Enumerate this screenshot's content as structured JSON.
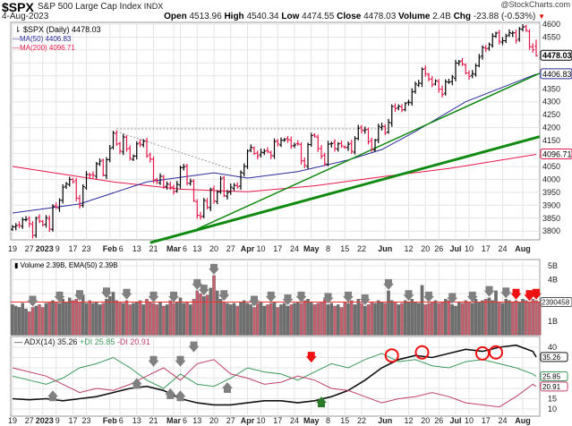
{
  "header": {
    "symbol": "$SPX",
    "name": "S&P 500 Large Cap Index",
    "exchange": "INDX",
    "date": "4-Aug-2023",
    "credit": "@StockCharts.com",
    "open_label": "Open",
    "open": "4513.96",
    "high_label": "High",
    "high": "4540.34",
    "low_label": "Low",
    "low": "4474.55",
    "close_label": "Close",
    "close": "4478.03",
    "volume_label": "Volume",
    "volume": "2.4B",
    "chg_label": "Chg",
    "chg": "-23.88 (-0.53%)"
  },
  "legend": {
    "price": "$SPX (Daily) 4478.03",
    "ma50": "MA(50) 4406.83",
    "ma200": "MA(200) 4096.71",
    "volume": "Volume 2.39B, EMA(50) 2.39B",
    "adx": "ADX(14) 35.26",
    "pdi": "+DI 25.85",
    "mdi": "-DI 20.91"
  },
  "colors": {
    "up": "#000000",
    "down": "#e8174b",
    "ma50": "#2a2a9a",
    "ma200": "#e8174b",
    "trend": "#108a10",
    "vol_up": "#6e6e6e",
    "vol_down": "#c4606e",
    "adx": "#111111",
    "pdi": "#3a9a5a",
    "mdi": "#c0406a",
    "annot": "#808080",
    "alert": "#ee1111"
  },
  "chart_data": [
    {
      "type": "ohlc",
      "title": "$SPX (Daily)",
      "ylim": [
        3775,
        4625
      ],
      "y_ticks": [
        3800,
        3850,
        3900,
        3950,
        4000,
        4050,
        4100,
        4150,
        4200,
        4250,
        4300,
        4350,
        4400,
        4450,
        4500,
        4550,
        4600
      ],
      "x_ticks": [
        [
          "19",
          0
        ],
        [
          "27",
          5
        ],
        [
          "2023",
          9
        ],
        [
          "9",
          13
        ],
        [
          "17",
          18
        ],
        [
          "23",
          22
        ],
        [
          "Feb",
          29
        ],
        [
          "6",
          32
        ],
        [
          "13",
          37
        ],
        [
          "21",
          42
        ],
        [
          "Mar",
          48
        ],
        [
          "6",
          50
        ],
        [
          "13",
          55
        ],
        [
          "20",
          60
        ],
        [
          "27",
          65
        ],
        [
          "Apr",
          70
        ],
        [
          "10",
          74
        ],
        [
          "17",
          79
        ],
        [
          "24",
          84
        ],
        [
          "May",
          89
        ],
        [
          "8",
          94
        ],
        [
          "15",
          99
        ],
        [
          "22",
          104
        ],
        [
          "Jun",
          111
        ],
        [
          "12",
          118
        ],
        [
          "20",
          123
        ],
        [
          "26",
          127
        ],
        [
          "Jul",
          132
        ],
        [
          "10",
          136
        ],
        [
          "17",
          141
        ],
        [
          "24",
          146
        ],
        [
          "Aug",
          152
        ]
      ],
      "grid": true,
      "closes": [
        3817,
        3821,
        3822,
        3844,
        3845,
        3829,
        3783,
        3849,
        3839,
        3824,
        3852,
        3808,
        3895,
        3892,
        3919,
        3969,
        3983,
        3999,
        3990,
        3928,
        3898,
        3972,
        4019,
        4016,
        4016,
        4060,
        4070,
        4017,
        4076,
        4119,
        4179,
        4136,
        4111,
        4164,
        4117,
        4081,
        4090,
        4137,
        4136,
        4147,
        4090,
        4079,
        3997,
        3991,
        4012,
        3970,
        3982,
        3970,
        3951,
        3981,
        4045,
        4048,
        3986,
        3992,
        3918,
        3861,
        3855,
        3919,
        3891,
        3960,
        3917,
        3951,
        4002,
        3937,
        3949,
        3970,
        3977,
        3971,
        4027,
        4050,
        4109,
        4124,
        4100,
        4090,
        4105,
        4109,
        4108,
        4092,
        4146,
        4137,
        4151,
        4154,
        4154,
        4129,
        4133,
        4137,
        4071,
        4055,
        4135,
        4169,
        4167,
        4119,
        4090,
        4061,
        4136,
        4138,
        4119,
        4137,
        4130,
        4124,
        4136,
        4109,
        4158,
        4198,
        4191,
        4192,
        4145,
        4115,
        4151,
        4205,
        4205,
        4180,
        4221,
        4282,
        4273,
        4283,
        4268,
        4293,
        4298,
        4338,
        4369,
        4372,
        4425,
        4409,
        4388,
        4365,
        4381,
        4348,
        4328,
        4378,
        4376,
        4396,
        4450,
        4455,
        4446,
        4411,
        4398,
        4409,
        4439,
        4472,
        4510,
        4505,
        4522,
        4554,
        4565,
        4534,
        4536,
        4554,
        4567,
        4566,
        4537,
        4582,
        4589,
        4576,
        4513,
        4501,
        4478
      ],
      "last_open": 4513.96,
      "last_high": 4540.34,
      "last_low": 4474.55,
      "ma50": [
        [
          0,
          3870
        ],
        [
          20,
          3905
        ],
        [
          40,
          3990
        ],
        [
          60,
          4025
        ],
        [
          70,
          4005
        ],
        [
          85,
          4030
        ],
        [
          100,
          4075
        ],
        [
          110,
          4115
        ],
        [
          120,
          4185
        ],
        [
          135,
          4300
        ],
        [
          156,
          4406.83
        ]
      ],
      "ma200": [
        [
          0,
          4050
        ],
        [
          30,
          3990
        ],
        [
          50,
          3962
        ],
        [
          70,
          3952
        ],
        [
          90,
          3975
        ],
        [
          110,
          4010
        ],
        [
          130,
          4042
        ],
        [
          156,
          4096.71
        ]
      ],
      "price_labels": {
        "close": "4478.03",
        "ma50": "4406.83",
        "ma200": "4096.71"
      },
      "trendlines": [
        [
          [
            55,
            3808
          ],
          [
            157,
            4410
          ]
        ],
        [
          [
            41,
            3755
          ],
          [
            157,
            4165
          ]
        ]
      ],
      "dotted_lines": [
        [
          [
            31,
            4195
          ],
          [
            112,
            4195
          ]
        ],
        [
          [
            31,
            4185
          ],
          [
            65,
            4040
          ]
        ]
      ]
    },
    {
      "type": "bar",
      "title": "Volume",
      "ylim": [
        0,
        5.5
      ],
      "y_ticks": [
        [
          "1B",
          1
        ],
        [
          "2B",
          2
        ],
        [
          "3B",
          3
        ],
        [
          "4B",
          4
        ],
        [
          "5B",
          5
        ]
      ],
      "ema_label": "2390458",
      "ema": 2.39,
      "values": [
        2.2,
        2.1,
        2.0,
        2.3,
        1.9,
        1.7,
        2.0,
        2.1,
        2.2,
        2.0,
        2.3,
        2.4,
        2.5,
        2.4,
        2.3,
        2.6,
        2.4,
        2.7,
        2.5,
        2.6,
        2.4,
        2.9,
        2.3,
        2.5,
        2.3,
        2.4,
        2.2,
        2.3,
        2.6,
        2.8,
        3.1,
        2.5,
        2.4,
        2.3,
        2.5,
        2.2,
        2.3,
        2.4,
        2.5,
        2.2,
        2.6,
        2.4,
        2.3,
        2.2,
        2.4,
        2.1,
        2.2,
        2.5,
        2.3,
        2.4,
        2.7,
        2.3,
        2.4,
        2.2,
        2.6,
        3.2,
        3.0,
        2.8,
        2.9,
        3.4,
        4.3,
        3.2,
        2.6,
        2.4,
        2.3,
        2.2,
        2.3,
        2.1,
        2.4,
        2.5,
        2.3,
        2.2,
        2.0,
        2.3,
        2.4,
        2.1,
        2.2,
        2.3,
        2.4,
        2.0,
        2.2,
        2.3,
        2.1,
        2.2,
        2.3,
        2.4,
        2.3,
        2.5,
        2.6,
        2.4,
        2.2,
        2.3,
        2.4,
        2.6,
        2.2,
        2.3,
        2.1,
        2.2,
        2.0,
        2.4,
        2.3,
        2.5,
        2.2,
        2.6,
        2.3,
        2.1,
        2.2,
        2.4,
        2.3,
        2.5,
        2.4,
        2.3,
        3.2,
        2.5,
        2.4,
        2.2,
        2.3,
        2.5,
        2.4,
        2.6,
        2.4,
        2.3,
        3.6,
        2.2,
        2.3,
        2.4,
        2.5,
        2.3,
        2.4,
        2.6,
        2.5,
        2.2,
        2.1,
        2.4,
        2.3,
        2.5,
        2.4,
        2.3,
        2.6,
        2.4,
        2.5,
        2.6,
        2.7,
        2.5,
        3.2,
        2.4,
        2.3,
        2.6,
        2.5,
        2.4,
        2.5,
        2.4,
        2.6,
        2.5,
        2.4,
        2.6,
        2.5,
        2.4
      ],
      "arrows_down_gray": [
        6,
        14,
        20,
        28,
        34,
        42,
        48,
        55,
        57,
        60,
        63,
        72,
        77,
        82,
        86,
        94,
        100,
        105,
        112,
        118,
        124,
        131,
        137,
        142,
        147
      ],
      "arrows_down_red": [
        150,
        154,
        156
      ]
    },
    {
      "type": "line",
      "title": "ADX(14)",
      "ylim": [
        5,
        45
      ],
      "y_ticks": [
        10,
        15,
        20,
        25,
        30,
        35,
        40
      ],
      "x": [
        0,
        5,
        10,
        15,
        20,
        25,
        30,
        35,
        40,
        45,
        50,
        55,
        60,
        65,
        70,
        75,
        80,
        85,
        90,
        95,
        100,
        105,
        110,
        115,
        120,
        125,
        130,
        135,
        140,
        145,
        150,
        155,
        156
      ],
      "series": [
        {
          "name": "ADX(14)",
          "last": "35.26",
          "values": [
            15,
            14.5,
            15,
            14,
            15,
            16,
            18,
            20,
            21,
            19,
            15,
            13,
            12,
            12,
            13,
            14,
            14,
            13,
            14,
            16,
            19,
            24,
            30,
            34,
            36,
            35,
            37,
            39,
            38,
            40,
            41,
            38,
            35.26
          ]
        },
        {
          "name": "+DI",
          "last": "25.85",
          "values": [
            26,
            24,
            22,
            25,
            30,
            32,
            35,
            30,
            24,
            20,
            27,
            22,
            21,
            25,
            30,
            28,
            27,
            24,
            28,
            32,
            30,
            34,
            37,
            33,
            34,
            31,
            30,
            33,
            34,
            32,
            30,
            27,
            25.85
          ]
        },
        {
          "name": "-DI",
          "last": "20.91",
          "values": [
            30,
            28,
            26,
            22,
            18,
            20,
            19,
            22,
            26,
            30,
            24,
            32,
            34,
            27,
            25,
            22,
            23,
            26,
            24,
            20,
            19,
            16,
            13,
            15,
            16,
            18,
            16,
            13,
            12,
            11,
            16,
            22,
            20.91
          ]
        }
      ],
      "circles": [
        [
          113,
          36
        ],
        [
          122,
          37.5
        ],
        [
          140,
          37
        ],
        [
          144,
          37.5
        ]
      ],
      "arrows_down_gray": [
        [
          42,
          31
        ],
        [
          50,
          31
        ],
        [
          54,
          38
        ]
      ],
      "arrows_up_gray": [
        [
          12,
          16
        ],
        [
          47,
          17
        ],
        [
          50,
          16
        ],
        [
          64,
          20
        ],
        [
          37,
          22
        ]
      ],
      "arrow_down_red": [
        89,
        33
      ],
      "arrow_up_green": [
        92,
        13
      ]
    }
  ]
}
